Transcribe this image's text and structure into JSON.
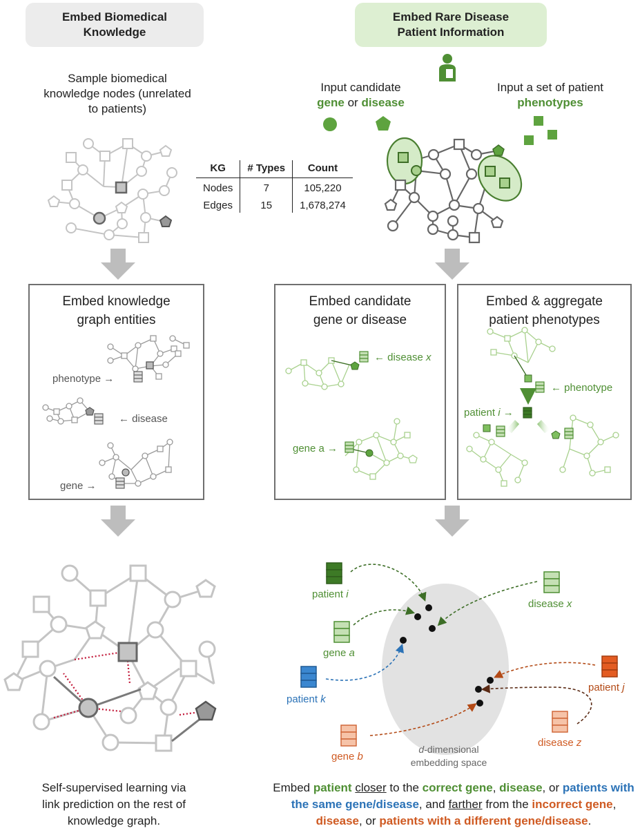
{
  "left_header": "Embed Biomedical Knowledge",
  "right_header": "Embed Rare Disease Patient Information",
  "sample_text": "Sample biomedical knowledge nodes (unrelated to patients)",
  "input_candidate": {
    "prefix": "Input candidate",
    "gene": "gene",
    "or": "or",
    "disease": "disease"
  },
  "input_phenotypes": {
    "prefix": "Input a set of patient",
    "phenotypes": "phenotypes"
  },
  "kg_table": {
    "headers": [
      "KG",
      "# Types",
      "Count"
    ],
    "rows": [
      {
        "kg": "Nodes",
        "types": "7",
        "count": "105,220"
      },
      {
        "kg": "Edges",
        "types": "15",
        "count": "1,678,274"
      }
    ]
  },
  "box_kg": {
    "title": "Embed knowledge graph entities",
    "phenotype": "phenotype →",
    "disease": "← disease",
    "gene": "gene →"
  },
  "box_candidate": {
    "title": "Embed candidate gene or disease",
    "disease": "← disease ",
    "disease_var": "x",
    "gene": "gene a →"
  },
  "box_phen": {
    "title": "Embed & aggregate patient phenotypes",
    "phenotype": "← phenotype",
    "patient": "patient ",
    "patient_var": "i",
    "arrow": " →"
  },
  "embedding": {
    "patient_i": "patient ",
    "i": "i",
    "gene_a": "gene ",
    "a": "a",
    "patient_k": "patient ",
    "k": "k",
    "gene_b": "gene ",
    "b": "b",
    "disease_x": "disease ",
    "x": "x",
    "patient_j": "patient ",
    "j": "j",
    "disease_z": "disease ",
    "z": "z",
    "space_d": "d",
    "space_rest": "-dimensional",
    "space_line2": "embedding space"
  },
  "left_bottom": "Self-supervised learning via link prediction on the rest of knowledge graph.",
  "right_bottom": {
    "p1": "Embed ",
    "p2": "patient",
    "p3": " ",
    "p4": "closer",
    "p5": " to the ",
    "p6": "correct gene",
    "p7": ", ",
    "p8": "disease",
    "p9": ", or ",
    "p10": "patients with the same gene/disease",
    "p11": ", and ",
    "p12": "farther",
    "p13": " from the ",
    "p14": "incorrect gene",
    "p15": ", ",
    "p16": "disease",
    "p17": ", or ",
    "p18": "patients with a different gene/disease",
    "p19": "."
  },
  "colors": {
    "green": "#4f8f34",
    "light_green": "#a9d18e",
    "blue": "#2c73b7",
    "orange": "#cf5a22",
    "gray": "#bdbdbd"
  }
}
